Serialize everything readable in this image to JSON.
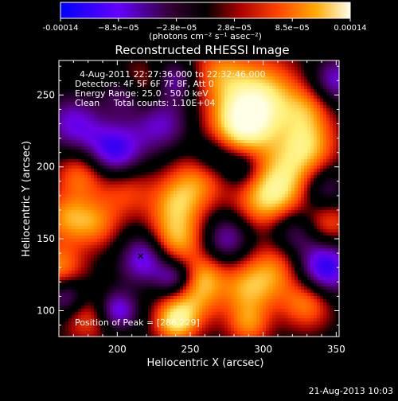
{
  "colorbar": {
    "tick_labels": [
      "-0.00014",
      "−8.5e−05",
      "−2.8e−05",
      "2.8e−05",
      "8.5e−05",
      "0.00014"
    ],
    "unit_label": "(photons cm⁻² s⁻¹ asec⁻²)",
    "min": -0.00014,
    "max": 0.00014
  },
  "chart_data": {
    "type": "heatmap",
    "title": "Reconstructed RHESSI Image",
    "xlabel": "Heliocentric X (arcsec)",
    "ylabel": "Heliocentric Y (arcsec)",
    "xlim": [
      160,
      352
    ],
    "ylim": [
      82,
      274
    ],
    "xticks": [
      200,
      250,
      300,
      350
    ],
    "yticks": [
      100,
      150,
      200,
      250
    ],
    "annotations": [
      "4-Aug-2011 22:27:36.000 to 22:32:46.000",
      "Detectors: 4F 5F 6F 7F 8F, Att 0",
      "Energy Range: 25.0 - 50.0 keV",
      "Clean     Total counts: 1.10E+04"
    ],
    "peak_label": "Position of Peak = [286,229]",
    "peak": [
      286,
      229
    ],
    "colormap": [
      "#0000ff",
      "#9900ff",
      "#000000",
      "#cc0000",
      "#ff8800",
      "#ffff99"
    ]
  },
  "footer": {
    "timestamp": "21-Aug-2013 10:03"
  }
}
